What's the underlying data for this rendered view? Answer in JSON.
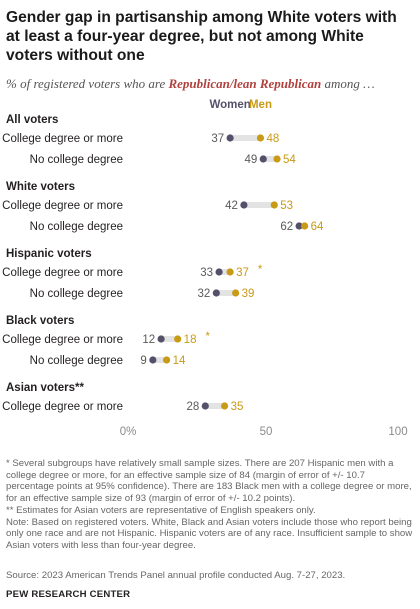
{
  "title": "Gender gap in partisanship among White voters with at least a four-year degree, but not among White voters without one",
  "subtitle": {
    "prefix": "% of registered voters who are ",
    "highlight": "Republican/lean Republican",
    "suffix": " among …"
  },
  "colors": {
    "women": "#55506a",
    "men": "#c99a16",
    "bar": "#e3e3e3",
    "highlight": "#b0413e"
  },
  "chart_data": {
    "type": "dot-plot",
    "legend": [
      "Women",
      "Men"
    ],
    "xlim": [
      0,
      100
    ],
    "x_ticks": [
      "0%",
      "50",
      "100"
    ],
    "groups": [
      {
        "label": "All voters",
        "rows": [
          {
            "label": "College degree or more",
            "women": 37,
            "men": 48,
            "note": ""
          },
          {
            "label": "No college degree",
            "women": 49,
            "men": 54,
            "note": ""
          }
        ]
      },
      {
        "label": "White voters",
        "rows": [
          {
            "label": "College degree or more",
            "women": 42,
            "men": 53,
            "note": ""
          },
          {
            "label": "No college degree",
            "women": 62,
            "men": 64,
            "note": ""
          }
        ]
      },
      {
        "label": "Hispanic voters",
        "rows": [
          {
            "label": "College degree or more",
            "women": 33,
            "men": 37,
            "note": "*"
          },
          {
            "label": "No college degree",
            "women": 32,
            "men": 39,
            "note": ""
          }
        ]
      },
      {
        "label": "Black voters",
        "rows": [
          {
            "label": "College degree or more",
            "women": 12,
            "men": 18,
            "note": "*"
          },
          {
            "label": "No college degree",
            "women": 9,
            "men": 14,
            "note": ""
          }
        ]
      },
      {
        "label": "Asian voters**",
        "rows": [
          {
            "label": "College degree or more",
            "women": 28,
            "men": 35,
            "note": ""
          }
        ]
      }
    ]
  },
  "notes": [
    "* Several subgroups have relatively small sample sizes. There are 207 Hispanic men with a college degree or more, for an effective sample size of 84 (margin of error of +/- 10.7 percentage points at 95% confidence). There are 183 Black men with a college degree or more, for an effective sample size of 93 (margin of error of +/- 10.2 points).",
    "** Estimates for Asian voters are representative of English speakers only.",
    "Note: Based on registered voters. White, Black and Asian voters include those who report being only one race and are not Hispanic. Hispanic voters are of any race. Insufficient sample to show Asian voters with less than four-year degree."
  ],
  "source": "Source: 2023 American Trends Panel annual profile conducted Aug. 7-27, 2023.",
  "org": "PEW RESEARCH CENTER"
}
